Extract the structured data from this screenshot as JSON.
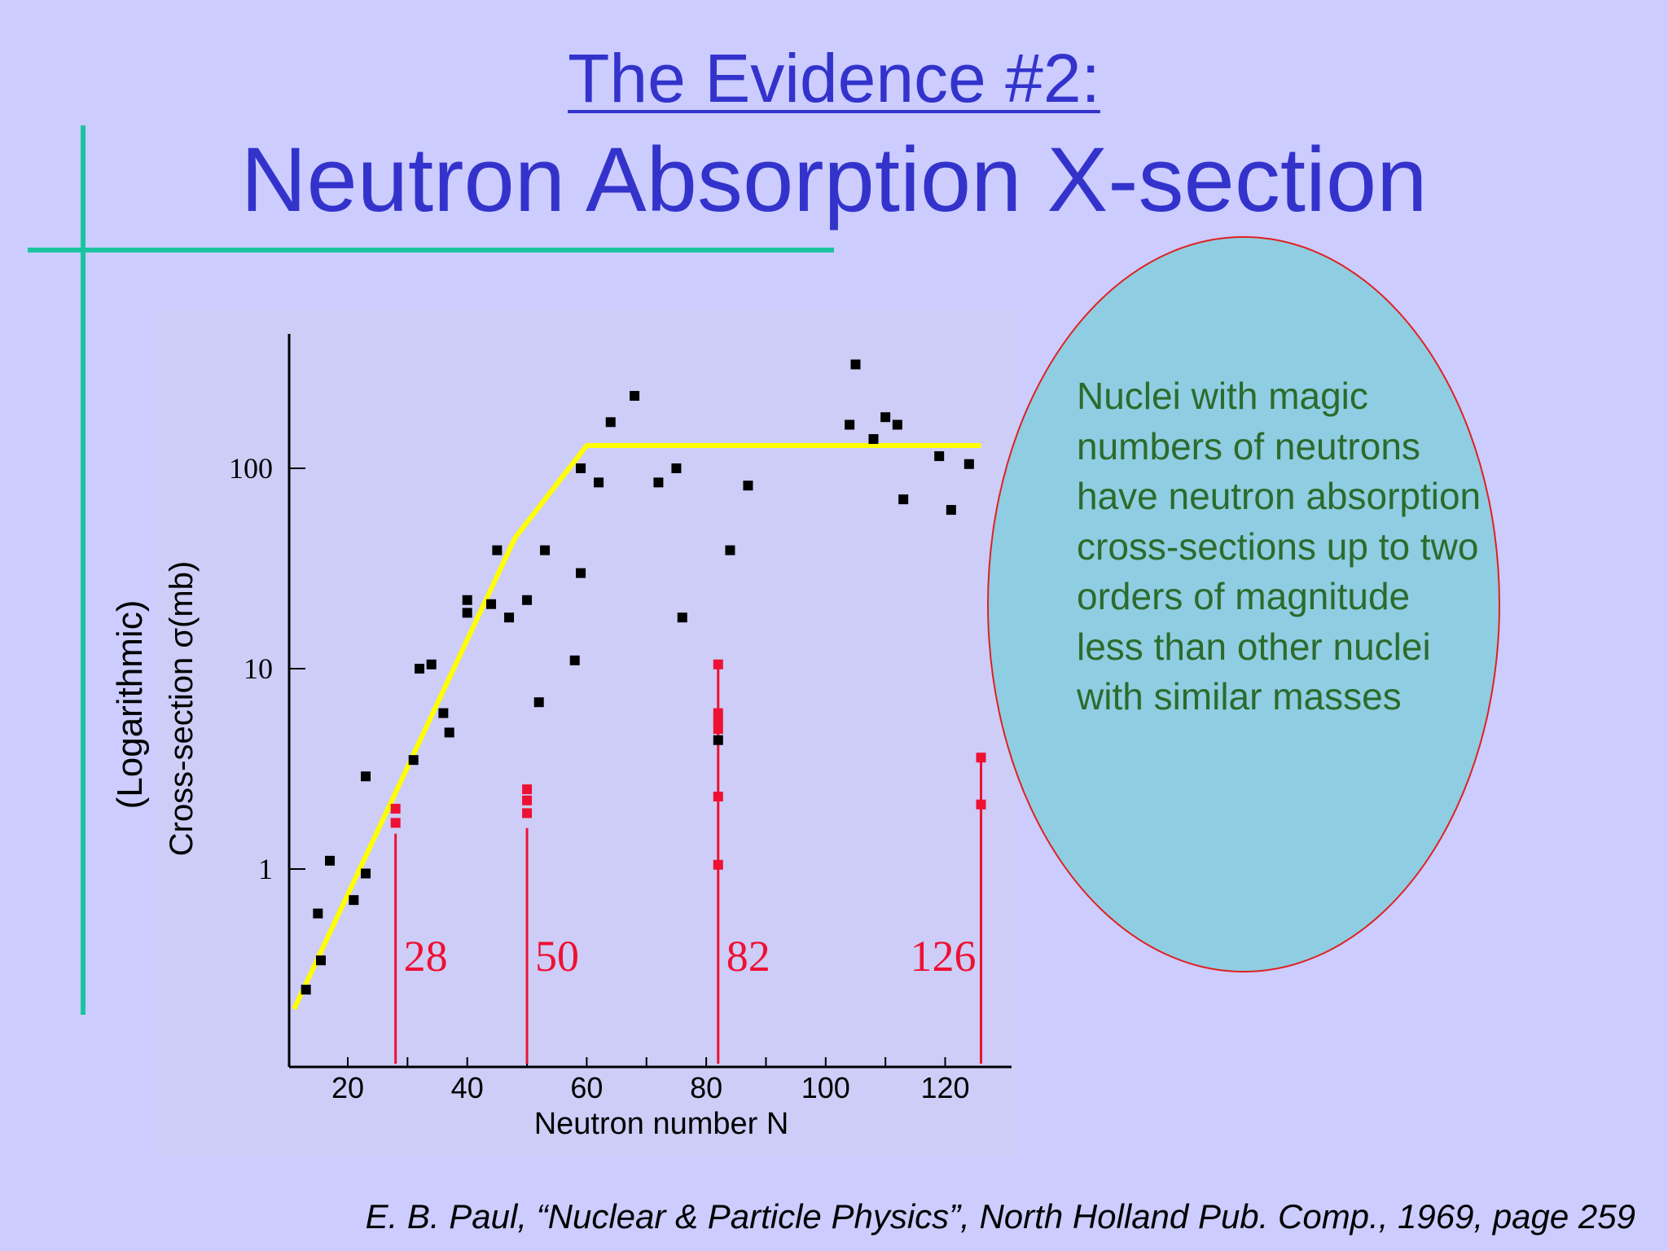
{
  "slide": {
    "title_line1": "The Evidence #2:",
    "title_line2": "Neutron Absorption X-section",
    "side_label": "(Logarithmic)",
    "callout_text": "Nuclei with magic numbers of neutrons have neutron absorption cross-sections up to two orders of magnitude less than other nuclei with similar masses",
    "citation": "E. B. Paul, “Nuclear & Particle Physics”, North Holland Pub. Comp., 1969, page 259"
  },
  "colors": {
    "title": "#3333cc",
    "decor_lines": "#1bc4a0",
    "background": "#ccccff",
    "callout_fill": "#8fcde2",
    "callout_border": "#e02020",
    "callout_text": "#2c6b2c",
    "trend_line": "#ffff00",
    "magic_markers": "#ee1133",
    "data_points": "#000000"
  },
  "chart_data": {
    "type": "scatter",
    "xlabel": "Neutron number N",
    "ylabel": "Cross-section σ(mb)",
    "y_scale": "log",
    "xlim": [
      10,
      128
    ],
    "ylim": [
      0.1,
      500
    ],
    "x_ticks": [
      20,
      40,
      60,
      80,
      100,
      120
    ],
    "y_ticks": [
      {
        "value": 1,
        "label": "1"
      },
      {
        "value": 10,
        "label": "10"
      },
      {
        "value": 100,
        "label": "100"
      }
    ],
    "grid": false,
    "series": [
      {
        "points": [
          [
            13,
            0.25
          ],
          [
            15,
            0.6
          ],
          [
            15.5,
            0.35
          ],
          [
            17,
            1.1
          ],
          [
            21,
            0.7
          ],
          [
            23,
            0.95
          ],
          [
            23,
            2.9
          ],
          [
            31,
            3.5
          ],
          [
            32,
            10
          ],
          [
            34,
            10.5
          ],
          [
            36,
            6
          ],
          [
            37,
            4.8
          ],
          [
            40,
            19
          ],
          [
            40,
            22
          ],
          [
            44,
            21
          ],
          [
            45,
            39
          ],
          [
            47,
            18
          ],
          [
            50,
            22
          ],
          [
            52,
            6.8
          ],
          [
            53,
            39
          ],
          [
            58,
            11
          ],
          [
            59,
            30
          ],
          [
            59,
            100
          ],
          [
            62,
            85
          ],
          [
            64,
            170
          ],
          [
            68,
            230
          ],
          [
            72,
            85
          ],
          [
            75,
            100
          ],
          [
            76,
            18
          ],
          [
            82,
            4.4
          ],
          [
            84,
            39
          ],
          [
            87,
            82
          ],
          [
            104,
            165
          ],
          [
            105,
            330
          ],
          [
            108,
            140
          ],
          [
            110,
            180
          ],
          [
            112,
            165
          ],
          [
            113,
            70
          ],
          [
            119,
            115
          ],
          [
            121,
            62
          ],
          [
            124,
            105
          ]
        ]
      },
      {
        "points": [
          [
            28,
            1.7
          ],
          [
            28,
            2.0
          ],
          [
            50,
            1.9
          ],
          [
            50,
            2.2
          ],
          [
            50,
            2.5
          ],
          [
            82,
            1.05
          ],
          [
            82,
            2.3
          ],
          [
            82,
            5.0
          ],
          [
            82,
            5.5
          ],
          [
            82,
            6.0
          ],
          [
            82,
            10.5
          ],
          [
            126,
            2.1
          ],
          [
            126,
            3.6
          ]
        ]
      }
    ],
    "trend_line": [
      [
        11,
        0.2
      ],
      [
        48,
        45
      ],
      [
        60,
        130
      ],
      [
        126,
        130
      ]
    ],
    "magic_numbers": [
      {
        "n": 28,
        "label": "28",
        "line_top": 1.5
      },
      {
        "n": 50,
        "label": "50",
        "line_top": 1.6
      },
      {
        "n": 82,
        "label": "82",
        "line_top": 10.5
      },
      {
        "n": 126,
        "label": "126",
        "line_top": 3.5
      }
    ]
  }
}
